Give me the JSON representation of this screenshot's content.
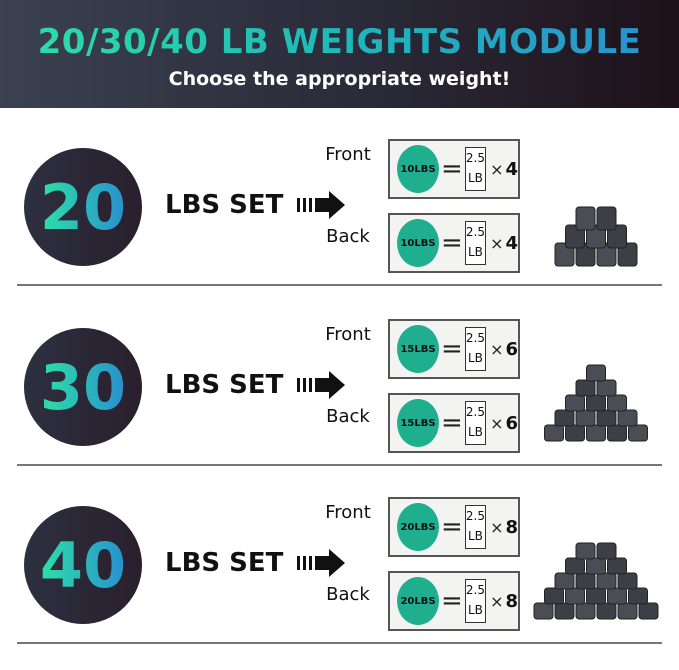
{
  "header": {
    "title": "20/30/40 LB WEIGHTS MODULE",
    "subtitle": "Choose the appropriate weight!"
  },
  "colors": {
    "accent_start": "#2de0a6",
    "accent_end": "#2a8fd0",
    "disc": "#1fae8e"
  },
  "sets": [
    {
      "number": "20",
      "label": "LBS SET",
      "front": {
        "label": "Front",
        "disc": "10LBS",
        "plate_value": "2.5",
        "plate_unit": "LB",
        "times": "×",
        "count": "4"
      },
      "back": {
        "label": "Back",
        "disc": "10LBS",
        "plate_value": "2.5",
        "plate_unit": "LB",
        "times": "×",
        "count": "4"
      }
    },
    {
      "number": "30",
      "label": "LBS SET",
      "front": {
        "label": "Front",
        "disc": "15LBS",
        "plate_value": "2.5",
        "plate_unit": "LB",
        "times": "×",
        "count": "6"
      },
      "back": {
        "label": "Back",
        "disc": "15LBS",
        "plate_value": "2.5",
        "plate_unit": "LB",
        "times": "×",
        "count": "6"
      }
    },
    {
      "number": "40",
      "label": "LBS SET",
      "front": {
        "label": "Front",
        "disc": "20LBS",
        "plate_value": "2.5",
        "plate_unit": "LB",
        "times": "×",
        "count": "8"
      },
      "back": {
        "label": "Back",
        "disc": "20LBS",
        "plate_value": "2.5",
        "plate_unit": "LB",
        "times": "×",
        "count": "8"
      }
    }
  ]
}
